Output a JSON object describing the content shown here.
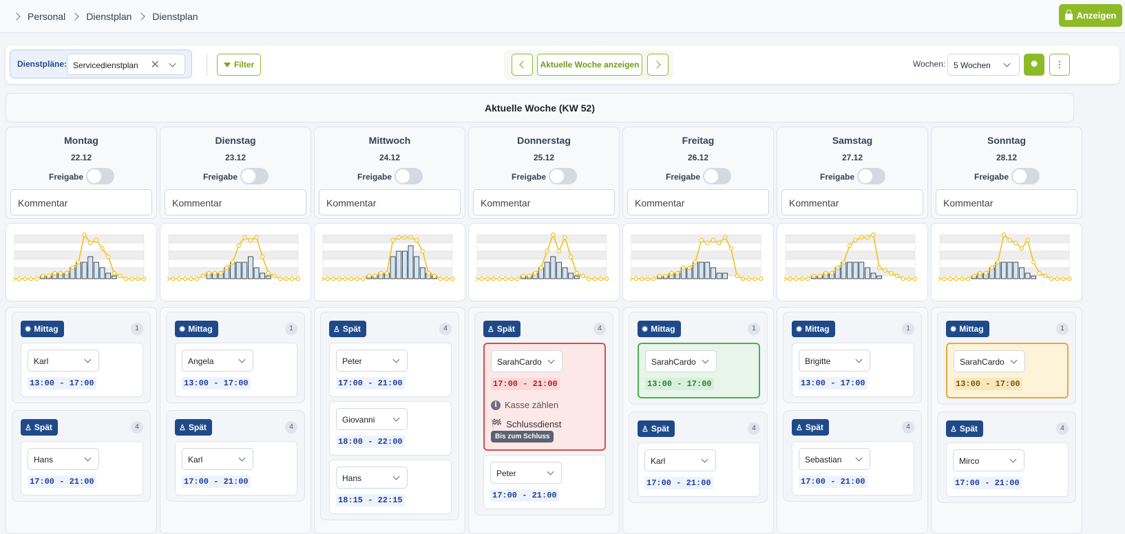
{
  "breadcrumb": [
    "Personal",
    "Dienstplan",
    "Dienstplan"
  ],
  "header_button": "Anzeigen",
  "toolbar": {
    "dp_label": "Dienstpläne:",
    "dp_value": "Servicedienstplan",
    "filter": "Filter",
    "current_week": "Aktuelle Woche anzeigen",
    "weeks_label": "Wochen:",
    "weeks_value": "5 Wochen"
  },
  "week_title": "Aktuelle Woche (KW 52)",
  "freigabe": "Freigabe",
  "comment_placeholder": "Kommentar",
  "colors": {
    "accent": "#8dbb28",
    "badge": "#1f4a8a",
    "chart_line": "#f2c01e"
  },
  "days": [
    {
      "name": "Montag",
      "date": "22.12",
      "groups": [
        {
          "label": "Mittag",
          "icon": "gear-icon",
          "count": "1",
          "entries": [
            {
              "person": "Karl",
              "time": "13:00 - 17:00",
              "style": ""
            }
          ]
        },
        {
          "label": "Spät",
          "icon": "person-icon",
          "count": "4",
          "entries": [
            {
              "person": "Hans",
              "time": "17:00 - 21:00",
              "style": ""
            }
          ]
        }
      ]
    },
    {
      "name": "Dienstag",
      "date": "23.12",
      "groups": [
        {
          "label": "Mittag",
          "icon": "gear-icon",
          "count": "1",
          "entries": [
            {
              "person": "Angela",
              "time": "13:00 - 17:00",
              "style": ""
            }
          ]
        },
        {
          "label": "Spät",
          "icon": "person-icon",
          "count": "4",
          "entries": [
            {
              "person": "Karl",
              "time": "17:00 - 21:00",
              "style": ""
            }
          ]
        }
      ]
    },
    {
      "name": "Mittwoch",
      "date": "24.12",
      "groups": [
        {
          "label": "Spät",
          "icon": "person-icon",
          "count": "4",
          "entries": [
            {
              "person": "Peter",
              "time": "17:00 - 21:00",
              "style": ""
            },
            {
              "person": "Giovanni",
              "time": "18:00 - 22:00",
              "style": ""
            },
            {
              "person": "Hans",
              "time": "18:15 - 22:15",
              "style": ""
            }
          ]
        }
      ]
    },
    {
      "name": "Donnerstag",
      "date": "25.12",
      "groups": [
        {
          "label": "Spät",
          "icon": "person-icon",
          "count": "4",
          "entries": [
            {
              "person": "SarahCardo",
              "time": "17:00 - 21:00",
              "style": "red",
              "note": "Kasse zählen",
              "closing": "Schlussdienst",
              "closing_pill": "Bis zum Schluss"
            },
            {
              "person": "Peter",
              "time": "17:00 - 21:00",
              "style": ""
            }
          ]
        }
      ]
    },
    {
      "name": "Freitag",
      "date": "26.12",
      "groups": [
        {
          "label": "Mittag",
          "icon": "gear-icon",
          "count": "1",
          "entries": [
            {
              "person": "SarahCardo",
              "time": "13:00 - 17:00",
              "style": "green"
            }
          ]
        },
        {
          "label": "Spät",
          "icon": "person-icon",
          "count": "4",
          "entries": [
            {
              "person": "Karl",
              "time": "17:00 - 21:00",
              "style": ""
            }
          ]
        }
      ]
    },
    {
      "name": "Samstag",
      "date": "27.12",
      "groups": [
        {
          "label": "Mittag",
          "icon": "gear-icon",
          "count": "1",
          "entries": [
            {
              "person": "Brigitte",
              "time": "13:00 - 17:00",
              "style": ""
            }
          ]
        },
        {
          "label": "Spät",
          "icon": "person-icon",
          "count": "4",
          "entries": [
            {
              "person": "Sebastian",
              "time": "17:00 - 21:00",
              "style": ""
            }
          ]
        }
      ]
    },
    {
      "name": "Sonntag",
      "date": "28.12",
      "groups": [
        {
          "label": "Mittag",
          "icon": "gear-icon",
          "count": "1",
          "entries": [
            {
              "person": "SarahCardo",
              "time": "13:00 - 17:00",
              "style": "yellow"
            }
          ]
        },
        {
          "label": "Spät",
          "icon": "person-icon",
          "count": "4",
          "entries": [
            {
              "person": "Mirco",
              "time": "17:00 - 21:00",
              "style": ""
            }
          ]
        }
      ]
    }
  ],
  "chart_data": [
    {
      "type": "bar",
      "day": "Montag",
      "values": [
        0,
        0,
        0,
        0,
        0,
        0.5,
        0.5,
        1,
        1,
        1,
        2,
        3,
        3,
        4,
        3,
        2,
        1,
        0.5,
        0,
        0,
        0,
        0,
        0
      ],
      "line": [
        0,
        0,
        0,
        0,
        0,
        0.5,
        0.5,
        1,
        1,
        1,
        2,
        3,
        8,
        6.5,
        7,
        5.5,
        4,
        1,
        0.5,
        0,
        0,
        0,
        0
      ]
    },
    {
      "type": "bar",
      "day": "Dienstag",
      "values": [
        0,
        0,
        0,
        0,
        0,
        0,
        0,
        1,
        1,
        1,
        2,
        3,
        3,
        3,
        4,
        2,
        1,
        0.5,
        0,
        0,
        0,
        0,
        0
      ],
      "line": [
        0,
        0,
        0,
        0,
        0,
        0,
        0.5,
        1,
        1,
        1,
        2,
        3,
        6,
        7.5,
        7,
        7.5,
        4,
        1,
        0.5,
        0,
        0,
        0,
        0
      ]
    },
    {
      "type": "bar",
      "day": "Mittwoch",
      "values": [
        0,
        0,
        0,
        0,
        0,
        0,
        0,
        0,
        0.5,
        0.5,
        1,
        1,
        4,
        5,
        5,
        6,
        4,
        2,
        1,
        0.5,
        0,
        0,
        0
      ],
      "line": [
        0,
        0,
        0,
        0,
        0,
        0,
        0,
        0,
        0.5,
        0.5,
        1,
        1,
        7,
        7.5,
        7.5,
        7.5,
        7,
        5,
        1,
        0.5,
        0,
        0,
        0
      ]
    },
    {
      "type": "bar",
      "day": "Donnerstag",
      "values": [
        0,
        0,
        0,
        0,
        0,
        0,
        0,
        0,
        0.5,
        0.5,
        1,
        2,
        3,
        4,
        3,
        2,
        1,
        0.5,
        0,
        0,
        0,
        0,
        0
      ],
      "line": [
        0,
        0,
        0,
        0,
        0,
        0,
        0,
        0,
        0.5,
        0.5,
        1,
        2,
        5,
        8,
        5,
        7.5,
        4,
        1,
        0.5,
        0,
        0,
        0,
        0
      ]
    },
    {
      "type": "bar",
      "day": "Freitag",
      "values": [
        0,
        0,
        0,
        0,
        0,
        0.5,
        0.5,
        1,
        1,
        2,
        2,
        3,
        3,
        3,
        2,
        1,
        1,
        0,
        0,
        0,
        0,
        0,
        0
      ],
      "line": [
        0,
        0,
        0,
        0,
        0,
        0.5,
        0.5,
        1,
        1,
        2,
        2,
        3,
        7,
        6.5,
        7,
        6.5,
        7.5,
        5.5,
        0.5,
        0,
        0,
        0,
        0
      ]
    },
    {
      "type": "bar",
      "day": "Samstag",
      "values": [
        0,
        0,
        0,
        0,
        0,
        0.5,
        0.5,
        1,
        1,
        2,
        3,
        3,
        3,
        3,
        2,
        1,
        0.5,
        0,
        0,
        0,
        0,
        0,
        0
      ],
      "line": [
        0,
        0,
        0,
        0,
        0,
        0.5,
        0.5,
        1,
        1,
        2,
        3,
        6,
        7,
        7.5,
        7.5,
        8,
        2,
        1.5,
        1,
        0.5,
        0,
        0,
        0
      ]
    },
    {
      "type": "bar",
      "day": "Sonntag",
      "values": [
        0,
        0,
        0,
        0,
        0,
        0,
        0.5,
        1,
        1,
        2,
        3,
        3,
        3,
        3,
        2,
        1,
        0.5,
        0,
        0,
        0,
        0,
        0,
        0
      ],
      "line": [
        0,
        0,
        0,
        0,
        0,
        0,
        0.5,
        1,
        1,
        2,
        3,
        8,
        7,
        6.5,
        5.5,
        7,
        3,
        1,
        0.5,
        0,
        0,
        0,
        0
      ]
    }
  ]
}
